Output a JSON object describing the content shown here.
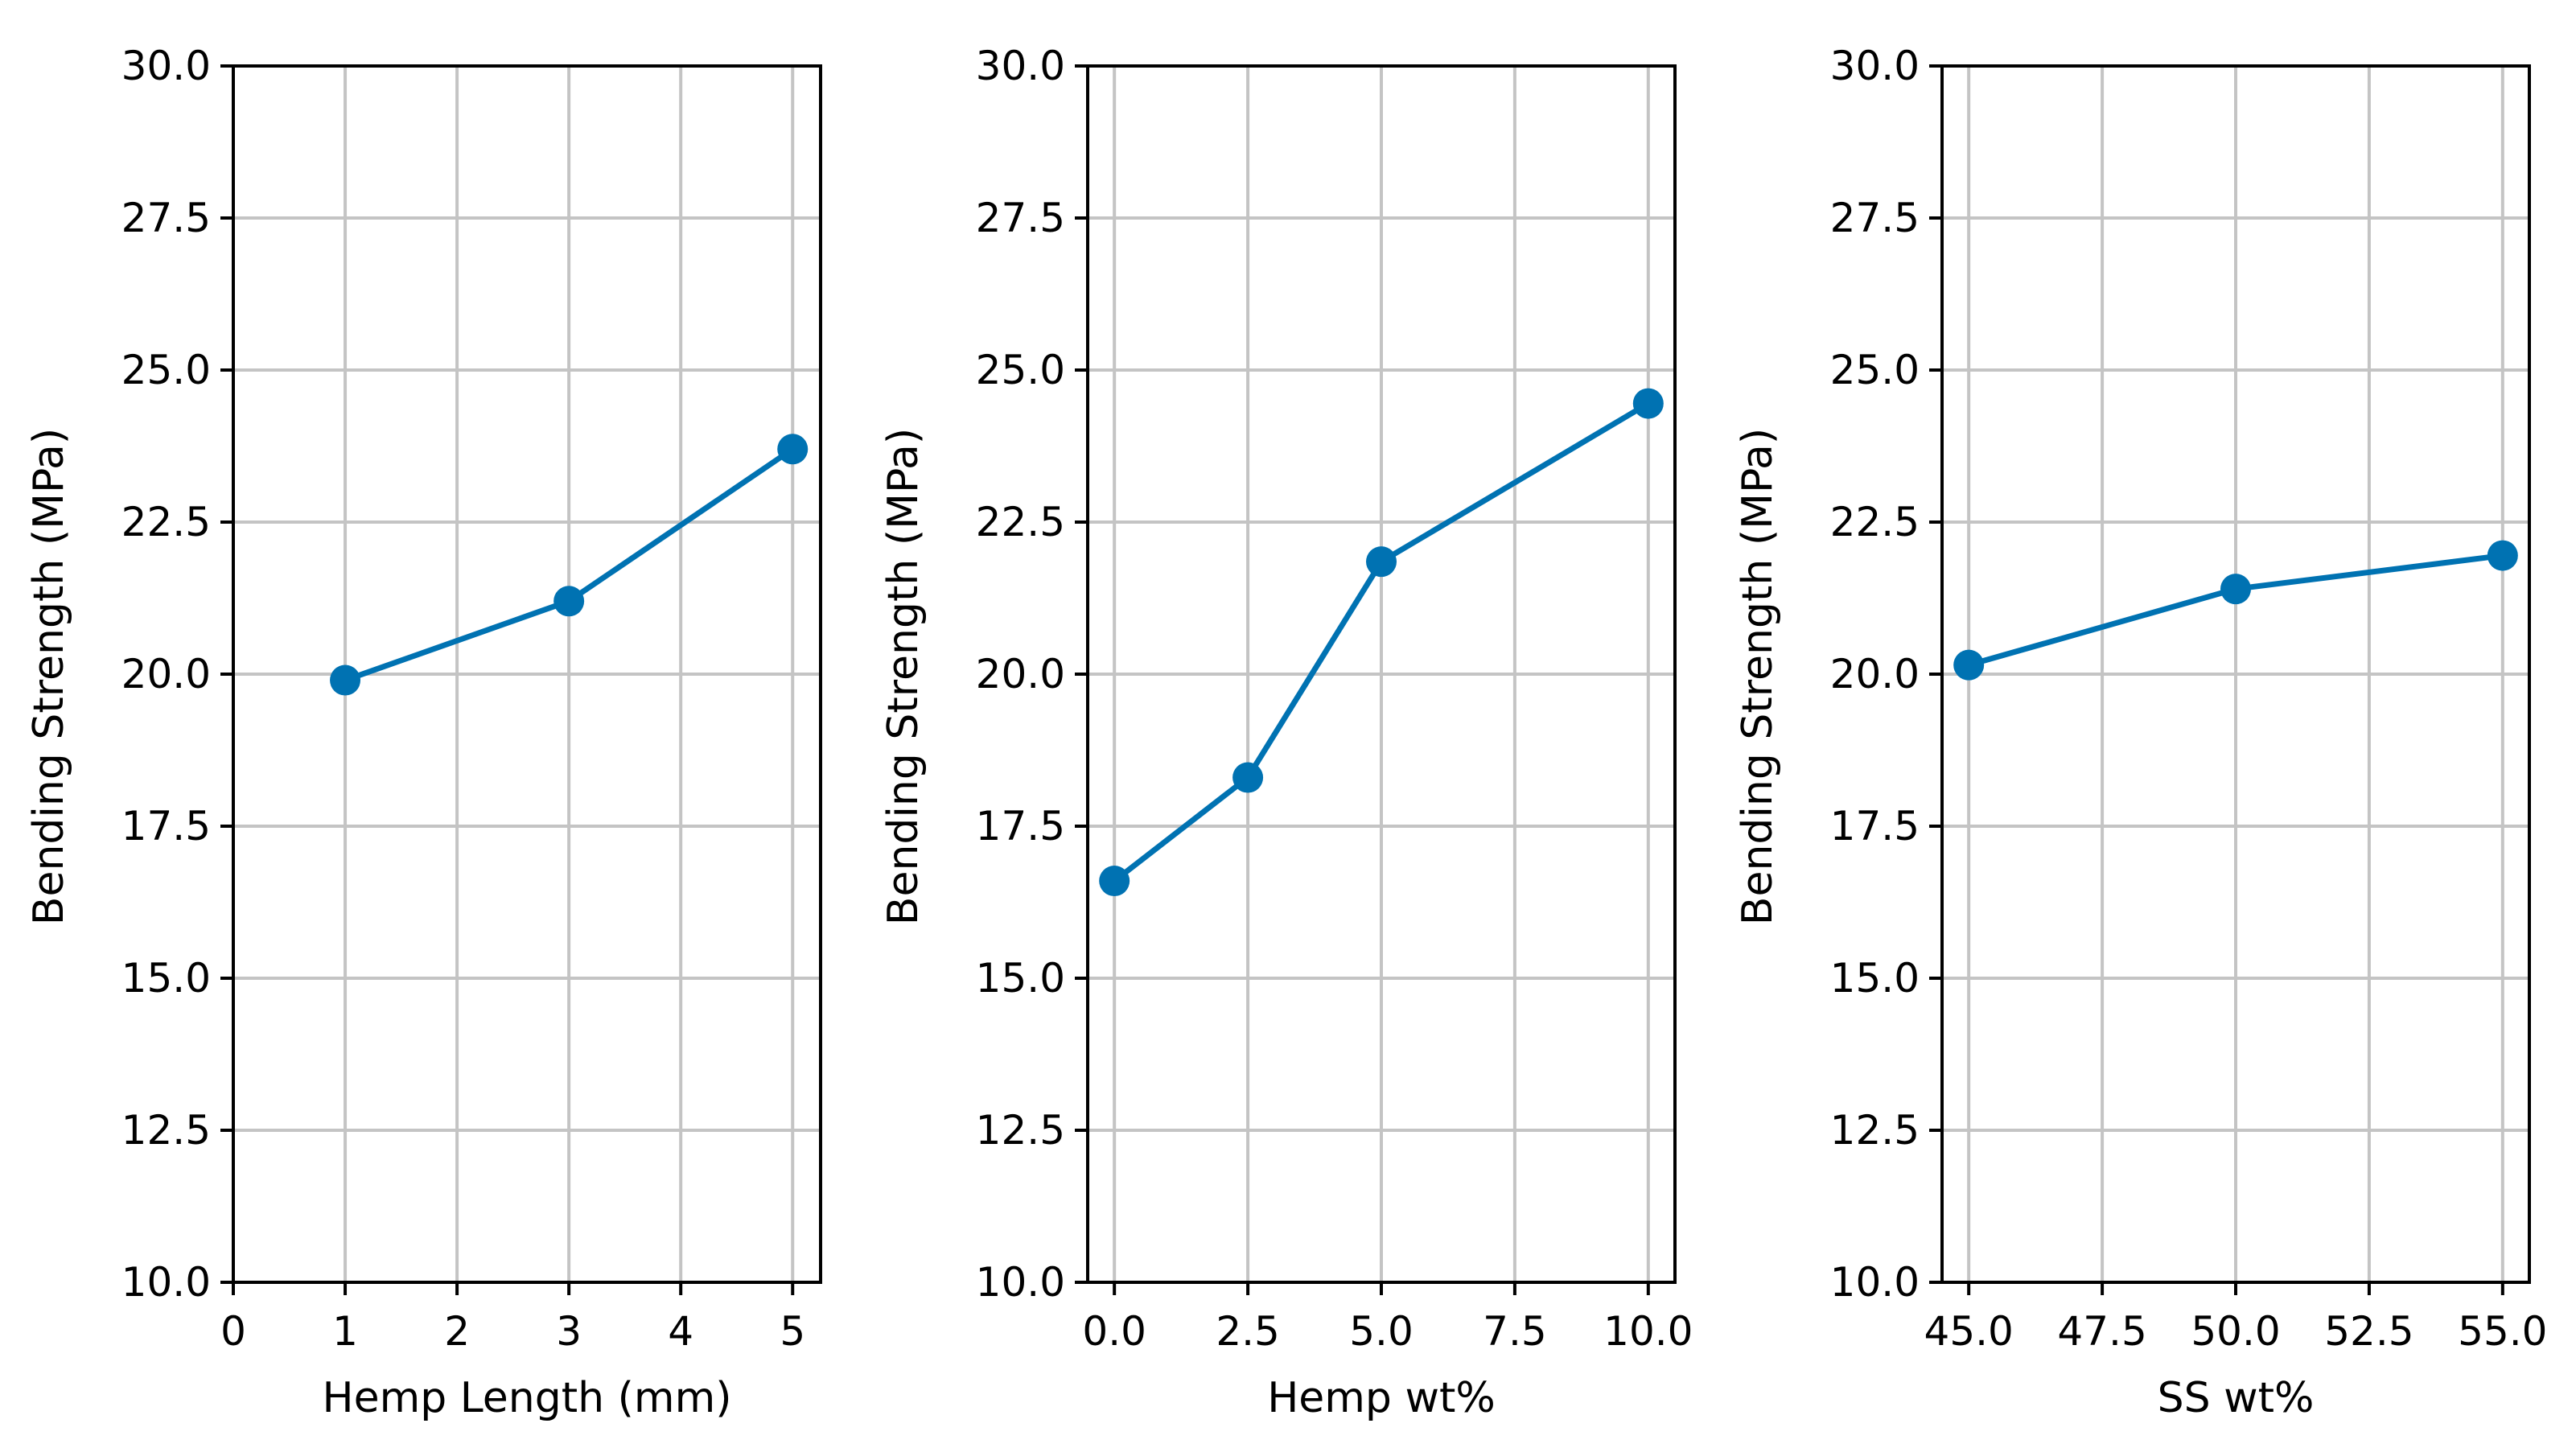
{
  "colors": {
    "line": "#0072B2",
    "grid": "#c4c4c4",
    "axis": "#000000",
    "background": "#ffffff"
  },
  "chart_data": [
    {
      "type": "line",
      "title": "",
      "xlabel": "Hemp Length (mm)",
      "ylabel": "Bending Strength (MPa)",
      "xlim": [
        0,
        5.25
      ],
      "ylim": [
        10.0,
        30.0
      ],
      "xticks": [
        0,
        1,
        2,
        3,
        4,
        5
      ],
      "xtick_labels": [
        "0",
        "1",
        "2",
        "3",
        "4",
        "5"
      ],
      "yticks": [
        10.0,
        12.5,
        15.0,
        17.5,
        20.0,
        22.5,
        25.0,
        27.5,
        30.0
      ],
      "ytick_labels": [
        "10.0",
        "12.5",
        "15.0",
        "17.5",
        "20.0",
        "22.5",
        "25.0",
        "27.5",
        "30.0"
      ],
      "grid": true,
      "series": [
        {
          "name": "Bending Strength",
          "x": [
            1,
            3,
            5
          ],
          "y": [
            19.9,
            21.2,
            23.7
          ]
        }
      ]
    },
    {
      "type": "line",
      "title": "",
      "xlabel": "Hemp wt%",
      "ylabel": "Bending Strength (MPa)",
      "xlim": [
        -0.5,
        10.5
      ],
      "ylim": [
        10.0,
        30.0
      ],
      "xticks": [
        0.0,
        2.5,
        5.0,
        7.5,
        10.0
      ],
      "xtick_labels": [
        "0.0",
        "2.5",
        "5.0",
        "7.5",
        "10.0"
      ],
      "yticks": [
        10.0,
        12.5,
        15.0,
        17.5,
        20.0,
        22.5,
        25.0,
        27.5,
        30.0
      ],
      "ytick_labels": [
        "10.0",
        "12.5",
        "15.0",
        "17.5",
        "20.0",
        "22.5",
        "25.0",
        "27.5",
        "30.0"
      ],
      "grid": true,
      "series": [
        {
          "name": "Bending Strength",
          "x": [
            0.0,
            2.5,
            5.0,
            10.0
          ],
          "y": [
            16.6,
            18.3,
            21.85,
            24.45
          ]
        }
      ]
    },
    {
      "type": "line",
      "title": "",
      "xlabel": "SS wt%",
      "ylabel": "Bending Strength (MPa)",
      "xlim": [
        44.5,
        55.5
      ],
      "ylim": [
        10.0,
        30.0
      ],
      "xticks": [
        45.0,
        47.5,
        50.0,
        52.5,
        55.0
      ],
      "xtick_labels": [
        "45.0",
        "47.5",
        "50.0",
        "52.5",
        "55.0"
      ],
      "yticks": [
        10.0,
        12.5,
        15.0,
        17.5,
        20.0,
        22.5,
        25.0,
        27.5,
        30.0
      ],
      "ytick_labels": [
        "10.0",
        "12.5",
        "15.0",
        "17.5",
        "20.0",
        "22.5",
        "25.0",
        "27.5",
        "30.0"
      ],
      "grid": true,
      "series": [
        {
          "name": "Bending Strength",
          "x": [
            45.0,
            50.0,
            55.0
          ],
          "y": [
            20.15,
            21.4,
            21.95
          ]
        }
      ]
    }
  ]
}
